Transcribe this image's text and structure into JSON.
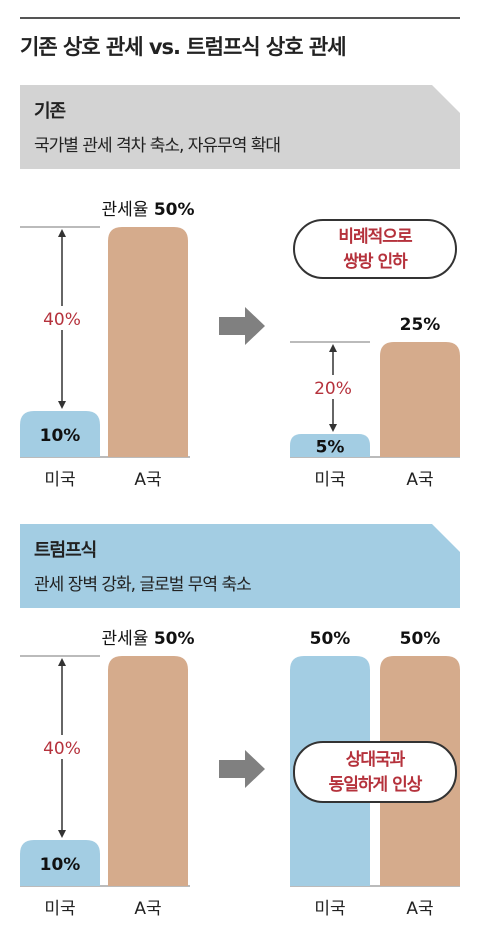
{
  "title": "기존 상호 관세 vs. 트럼프식 상호 관세",
  "sections": [
    {
      "banner": {
        "title": "기존",
        "subtitle": "국가별 관세 격차 축소, 자유무역 확대",
        "color": "#d3d3d3"
      },
      "callout": {
        "line1": "비례적으로",
        "line2": "쌍방 인하"
      }
    },
    {
      "banner": {
        "title": "트럼프식",
        "subtitle": "관세 장벽 강화, 글로벌 무역 축소",
        "color": "#a3cde3"
      },
      "callout": {
        "line1": "상대국과",
        "line2": "동일하게 인상"
      }
    }
  ],
  "colors": {
    "usa": "#a3cde3",
    "country_a": "#d5ab8c",
    "gap": "#b5323c",
    "arrow": "#808080"
  },
  "chart_data": [
    {
      "type": "bar",
      "section": "기존",
      "panel": "before",
      "categories": [
        "미국",
        "A국"
      ],
      "values": [
        10,
        50
      ],
      "data_labels": [
        "10%",
        "관세율 50%"
      ],
      "gap_label": "40%"
    },
    {
      "type": "bar",
      "section": "기존",
      "panel": "after",
      "categories": [
        "미국",
        "A국"
      ],
      "values": [
        5,
        25
      ],
      "data_labels": [
        "5%",
        "25%"
      ],
      "gap_label": "20%"
    },
    {
      "type": "bar",
      "section": "트럼프식",
      "panel": "before",
      "categories": [
        "미국",
        "A국"
      ],
      "values": [
        10,
        50
      ],
      "data_labels": [
        "10%",
        "관세율 50%"
      ],
      "gap_label": "40%"
    },
    {
      "type": "bar",
      "section": "트럼프식",
      "panel": "after",
      "categories": [
        "미국",
        "A국"
      ],
      "values": [
        50,
        50
      ],
      "data_labels": [
        "50%",
        "50%"
      ],
      "gap_label": ""
    }
  ]
}
